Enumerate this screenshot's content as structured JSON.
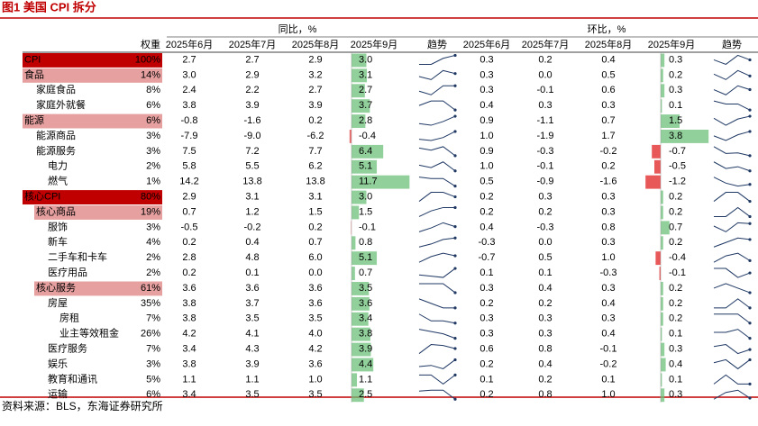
{
  "title": "图1 美国 CPI 拆分",
  "header": {
    "groups": [
      "同比，%",
      "环比，%"
    ],
    "weight": "权重",
    "months": [
      "2025年6月",
      "2025年7月",
      "2025年8月",
      "2025年9月"
    ],
    "trend": "趋势"
  },
  "table": {
    "rows": [
      {
        "name": "CPI",
        "level": 0,
        "highlight": "main",
        "weight": "100%",
        "yoy": [
          "2.7",
          "2.7",
          "2.9",
          "3.0"
        ],
        "mom": [
          "0.3",
          "0.2",
          "0.4",
          "0.3"
        ]
      },
      {
        "name": "食品",
        "level": 0,
        "highlight": "sub",
        "weight": "14%",
        "yoy": [
          "3.0",
          "2.9",
          "3.2",
          "3.1"
        ],
        "mom": [
          "0.3",
          "0.0",
          "0.5",
          "0.2"
        ]
      },
      {
        "name": "家庭食品",
        "level": 1,
        "weight": "8%",
        "yoy": [
          "2.4",
          "2.2",
          "2.7",
          "2.7"
        ],
        "mom": [
          "0.3",
          "-0.1",
          "0.6",
          "0.3"
        ]
      },
      {
        "name": "家庭外就餐",
        "level": 1,
        "weight": "6%",
        "yoy": [
          "3.8",
          "3.9",
          "3.9",
          "3.7"
        ],
        "mom": [
          "0.4",
          "0.3",
          "0.3",
          "0.1"
        ]
      },
      {
        "name": "能源",
        "level": 0,
        "highlight": "sub",
        "weight": "6%",
        "yoy": [
          "-0.8",
          "-1.6",
          "0.2",
          "2.8"
        ],
        "mom": [
          "0.9",
          "-1.1",
          "0.7",
          "1.5"
        ]
      },
      {
        "name": "能源商品",
        "level": 1,
        "weight": "3%",
        "yoy": [
          "-7.9",
          "-9.0",
          "-6.2",
          "-0.4"
        ],
        "mom": [
          "1.0",
          "-1.9",
          "1.7",
          "3.8"
        ]
      },
      {
        "name": "能源服务",
        "level": 1,
        "weight": "3%",
        "yoy": [
          "7.5",
          "7.2",
          "7.7",
          "6.4"
        ],
        "mom": [
          "0.9",
          "-0.3",
          "-0.2",
          "-0.7"
        ]
      },
      {
        "name": "电力",
        "level": 2,
        "weight": "2%",
        "yoy": [
          "5.8",
          "5.5",
          "6.2",
          "5.1"
        ],
        "mom": [
          "1.0",
          "-0.1",
          "0.2",
          "-0.5"
        ]
      },
      {
        "name": "燃气",
        "level": 2,
        "weight": "1%",
        "yoy": [
          "14.2",
          "13.8",
          "13.8",
          "11.7"
        ],
        "mom": [
          "0.5",
          "-0.9",
          "-1.6",
          "-1.2"
        ]
      },
      {
        "name": "核心CPI",
        "level": 0,
        "highlight": "main",
        "weight": "80%",
        "yoy": [
          "2.9",
          "3.1",
          "3.1",
          "3.0"
        ],
        "mom": [
          "0.2",
          "0.3",
          "0.3",
          "0.2"
        ]
      },
      {
        "name": "核心商品",
        "level": 1,
        "highlight": "sub",
        "weight": "19%",
        "yoy": [
          "0.7",
          "1.2",
          "1.5",
          "1.5"
        ],
        "mom": [
          "0.2",
          "0.2",
          "0.3",
          "0.2"
        ]
      },
      {
        "name": "服饰",
        "level": 2,
        "weight": "3%",
        "yoy": [
          "-0.5",
          "-0.2",
          "0.2",
          "-0.1"
        ],
        "mom": [
          "0.4",
          "-0.3",
          "0.8",
          "0.7"
        ]
      },
      {
        "name": "新车",
        "level": 2,
        "weight": "4%",
        "yoy": [
          "0.2",
          "0.4",
          "0.7",
          "0.8"
        ],
        "mom": [
          "-0.3",
          "0.0",
          "0.3",
          "0.2"
        ]
      },
      {
        "name": "二手车和卡车",
        "level": 2,
        "weight": "2%",
        "yoy": [
          "2.8",
          "4.8",
          "6.0",
          "5.1"
        ],
        "mom": [
          "-0.7",
          "0.5",
          "1.0",
          "-0.4"
        ]
      },
      {
        "name": "医疗用品",
        "level": 2,
        "weight": "2%",
        "yoy": [
          "0.2",
          "0.1",
          "0.0",
          "0.7"
        ],
        "mom": [
          "0.1",
          "0.1",
          "-0.3",
          "-0.1"
        ]
      },
      {
        "name": "核心服务",
        "level": 1,
        "highlight": "sub",
        "weight": "61%",
        "yoy": [
          "3.6",
          "3.6",
          "3.6",
          "3.5"
        ],
        "mom": [
          "0.3",
          "0.4",
          "0.3",
          "0.2"
        ]
      },
      {
        "name": "房屋",
        "level": 2,
        "weight": "35%",
        "yoy": [
          "3.8",
          "3.7",
          "3.6",
          "3.6"
        ],
        "mom": [
          "0.2",
          "0.2",
          "0.4",
          "0.2"
        ]
      },
      {
        "name": "房租",
        "level": 3,
        "weight": "7%",
        "yoy": [
          "3.8",
          "3.5",
          "3.5",
          "3.4"
        ],
        "mom": [
          "0.3",
          "0.3",
          "0.3",
          "0.2"
        ]
      },
      {
        "name": "业主等效租金",
        "level": 3,
        "weight": "26%",
        "yoy": [
          "4.2",
          "4.1",
          "4.0",
          "3.8"
        ],
        "mom": [
          "0.3",
          "0.3",
          "0.4",
          "0.1"
        ]
      },
      {
        "name": "医疗服务",
        "level": 2,
        "weight": "7%",
        "yoy": [
          "3.4",
          "4.3",
          "4.2",
          "3.9"
        ],
        "mom": [
          "0.6",
          "0.8",
          "-0.1",
          "0.3"
        ]
      },
      {
        "name": "娱乐",
        "level": 2,
        "weight": "3%",
        "yoy": [
          "3.8",
          "3.9",
          "3.6",
          "4.4"
        ],
        "mom": [
          "0.2",
          "0.4",
          "-0.2",
          "0.4"
        ]
      },
      {
        "name": "教育和通讯",
        "level": 2,
        "weight": "5%",
        "yoy": [
          "1.1",
          "1.1",
          "1.0",
          "1.1"
        ],
        "mom": [
          "0.1",
          "0.2",
          "0.1",
          "0.1"
        ]
      },
      {
        "name": "运输",
        "level": 2,
        "weight": "6%",
        "yoy": [
          "3.4",
          "3.5",
          "3.5",
          "2.5"
        ],
        "mom": [
          "0.2",
          "0.8",
          "1.0",
          "0.3"
        ]
      }
    ]
  },
  "source": "资料来源：BLS，东海证券研究所"
}
